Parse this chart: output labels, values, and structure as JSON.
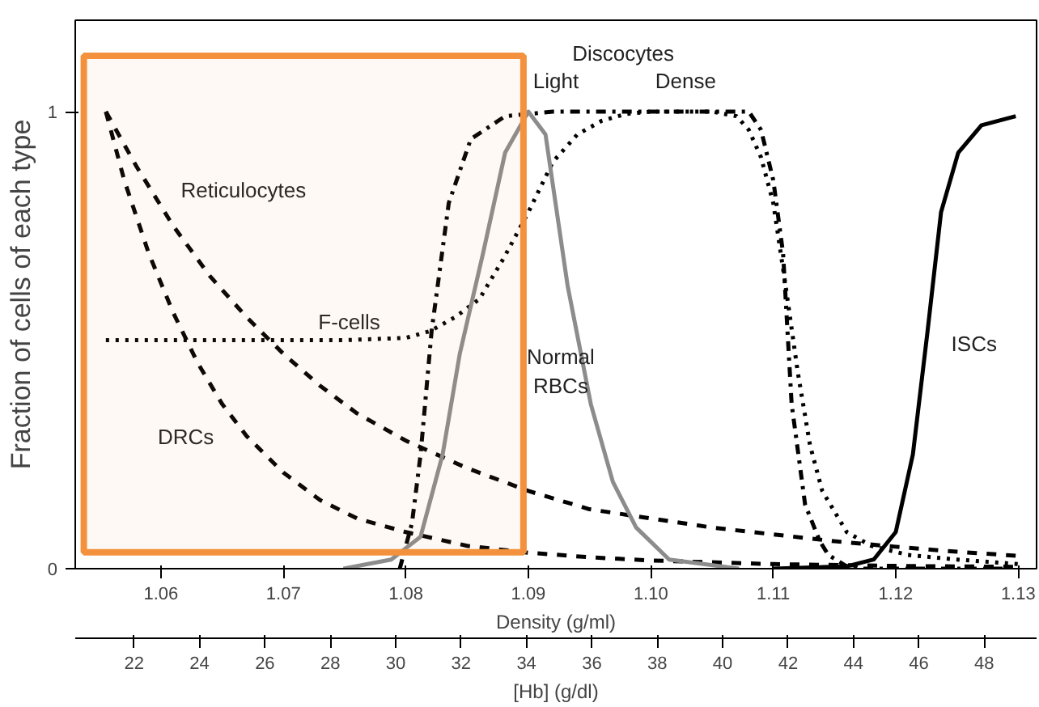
{
  "chart_data": {
    "type": "line",
    "xlabel": "Density (g/ml)",
    "x2label": "[Hb] (g/dl)",
    "ylabel": "Fraction of cells of each type",
    "xlim": [
      1.053,
      1.1315
    ],
    "xticks": [
      1.06,
      1.07,
      1.08,
      1.09,
      {
        "value": 1.1,
        "label": "1.10"
      },
      1.11,
      1.12,
      1.13
    ],
    "x2lim": [
      20.2,
      49.6
    ],
    "x2ticks": [
      22,
      24,
      26,
      28,
      30,
      32,
      34,
      36,
      38,
      40,
      42,
      44,
      46,
      48
    ],
    "ylim": [
      0,
      1.2
    ],
    "yticks": [
      0,
      1
    ],
    "grid": false,
    "series": [
      {
        "color": "#000000",
        "line_style": "dashed",
        "x": [
          1.0555,
          1.058,
          1.061,
          1.064,
          1.067,
          1.07,
          1.073,
          1.076,
          1.08,
          1.085,
          1.09,
          1.095,
          1.1,
          1.105,
          1.11,
          1.115,
          1.12,
          1.125,
          1.13
        ],
        "values": [
          1,
          0.88,
          0.75,
          0.64,
          0.55,
          0.47,
          0.4,
          0.34,
          0.28,
          0.22,
          0.17,
          0.13,
          0.11,
          0.09,
          0.075,
          0.06,
          0.048,
          0.037,
          0.028
        ]
      },
      {
        "color": "#000000",
        "line_style": "dashed",
        "x": [
          1.0555,
          1.057,
          1.059,
          1.061,
          1.063,
          1.065,
          1.067,
          1.07,
          1.073,
          1.076,
          1.08,
          1.085,
          1.09,
          1.095,
          1.1,
          1.11,
          1.12,
          1.13
        ],
        "values": [
          1,
          0.85,
          0.69,
          0.56,
          0.45,
          0.36,
          0.29,
          0.21,
          0.15,
          0.11,
          0.08,
          0.05,
          0.035,
          0.025,
          0.018,
          0.01,
          0.006,
          0.004
        ]
      },
      {
        "color": "#000000",
        "line_style": "dotted",
        "x": [
          1.0555,
          1.065,
          1.075,
          1.08,
          1.082,
          1.084,
          1.086,
          1.088,
          1.09,
          1.092,
          1.094,
          1.096,
          1.098,
          1.1,
          1.105,
          1.107,
          1.108,
          1.109,
          1.11,
          1.111,
          1.112,
          1.113,
          1.114,
          1.116,
          1.118,
          1.121,
          1.125,
          1.13
        ],
        "values": [
          0.5,
          0.5,
          0.5,
          0.505,
          0.52,
          0.55,
          0.59,
          0.68,
          0.78,
          0.89,
          0.95,
          0.98,
          0.995,
          1,
          1,
          0.99,
          0.96,
          0.9,
          0.8,
          0.62,
          0.43,
          0.27,
          0.17,
          0.08,
          0.05,
          0.03,
          0.02,
          0.01
        ]
      },
      {
        "color": "#000000",
        "line_style": "dashdot",
        "x": [
          1.0795,
          1.0805,
          1.0812,
          1.0821,
          1.0835,
          1.0853,
          1.0881,
          1.092,
          1.1,
          1.108,
          1.109,
          1.11,
          1.1108,
          1.1115,
          1.1126,
          1.1138,
          1.1145,
          1.1163,
          1.13
        ],
        "values": [
          0,
          0.1,
          0.25,
          0.52,
          0.8,
          0.94,
          0.99,
          1,
          1,
          1,
          0.96,
          0.85,
          0.69,
          0.36,
          0.14,
          0.06,
          0.03,
          0,
          0
        ]
      },
      {
        "color": "#8c8c8c",
        "line_style": "solid",
        "x": [
          1.0749,
          1.0788,
          1.0812,
          1.083,
          1.0844,
          1.0863,
          1.0881,
          1.09,
          1.0914,
          1.0932,
          1.0951,
          1.0969,
          1.0988,
          1.1015,
          1.1072
        ],
        "values": [
          0,
          0.02,
          0.07,
          0.25,
          0.47,
          0.69,
          0.91,
          1,
          0.95,
          0.62,
          0.36,
          0.19,
          0.09,
          0.02,
          0
        ]
      },
      {
        "color": "#000000",
        "line_style": "solid",
        "x": [
          1.11,
          1.116,
          1.1182,
          1.12,
          1.1214,
          1.1226,
          1.1237,
          1.1251,
          1.127,
          1.1298
        ],
        "values": [
          0,
          0.005,
          0.02,
          0.08,
          0.25,
          0.52,
          0.78,
          0.91,
          0.97,
          0.99
        ]
      }
    ],
    "annotations": [
      "Reticulocytes",
      "F-cells",
      "DRCs",
      "Normal\nRBCs",
      "Discocytes",
      "Light",
      "Dense",
      "ISCs"
    ],
    "bands": [
      {
        "axis": "x",
        "from": 1.0537,
        "to": 1.0896,
        "color": "#f4913c"
      }
    ]
  }
}
